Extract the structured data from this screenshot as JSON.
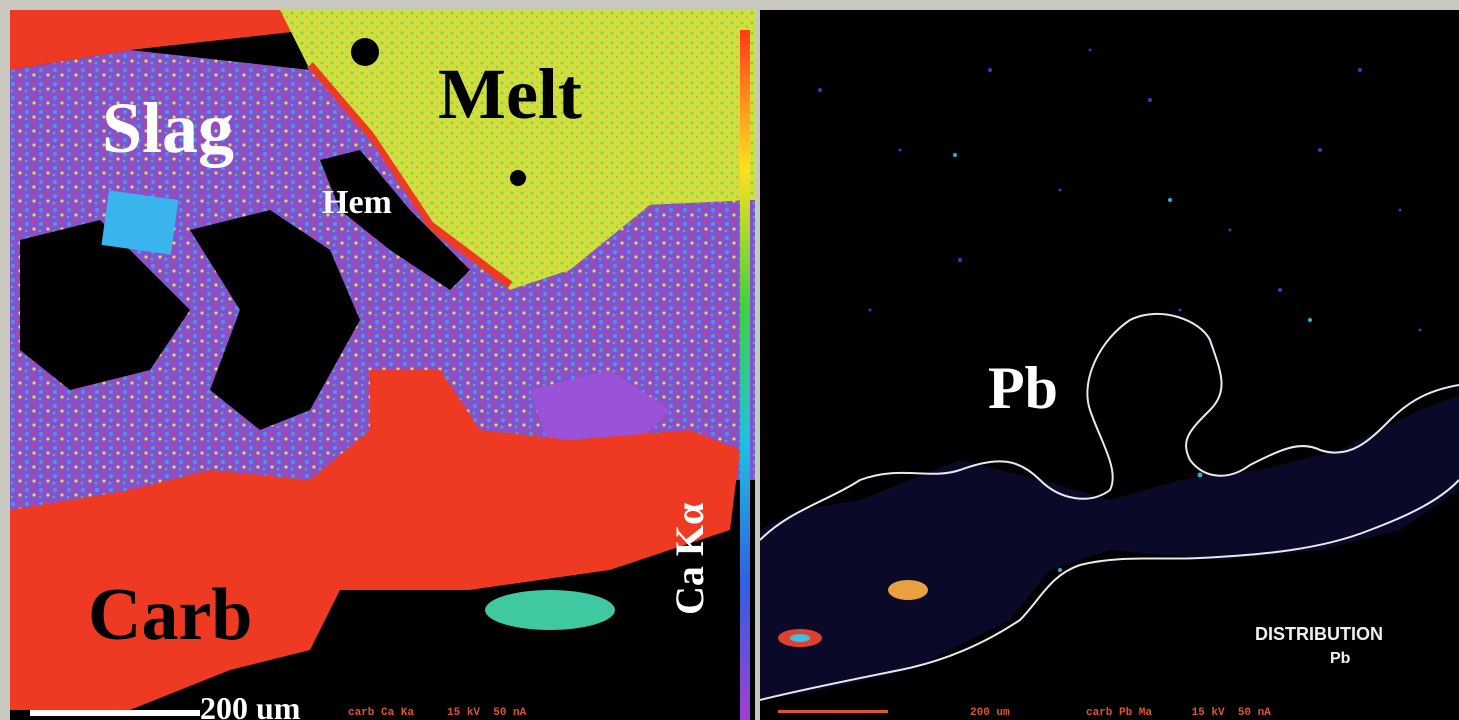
{
  "left_panel": {
    "labels": {
      "slag": "Slag",
      "melt": "Melt",
      "hem": "Hem",
      "carb": "Carb",
      "element": "Ca Kα",
      "scale": "200 um"
    },
    "footer": "carb Ca Ka     15 kV  50 nA"
  },
  "right_panel": {
    "labels": {
      "element": "Pb",
      "distribution_title": "DISTRIBUTION",
      "distribution_element": "Pb"
    },
    "footer_scale": "200 um",
    "footer": "carb Pb Ma      15 kV  50 nA"
  },
  "colors": {
    "background": "#c9c8c0",
    "map_black": "#000000",
    "carb_red": "#ee3a22",
    "melt_yellow": "#d8e03a",
    "slag_purple": "#8a4fd0",
    "outline": "#e8e8f0",
    "footer_text": "#e0542a"
  }
}
